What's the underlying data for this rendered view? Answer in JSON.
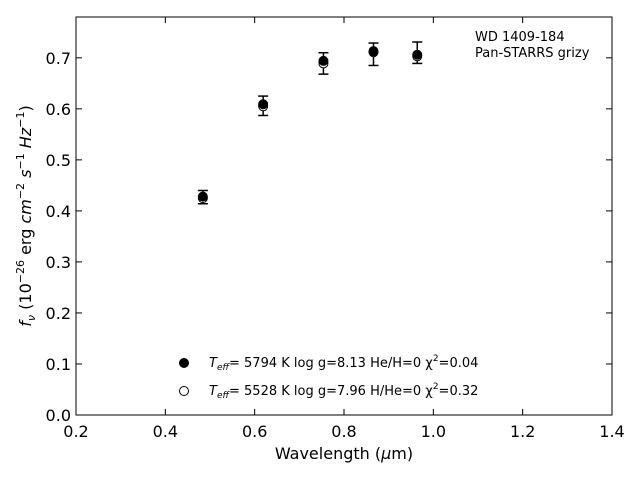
{
  "chart_data": {
    "type": "scatter",
    "title": "",
    "xlabel": "Wavelength (μm)",
    "ylabel": "f_ν (10^-26 erg cm^-2 s^-1 Hz^-1)",
    "xlim": [
      0.2,
      1.4
    ],
    "ylim": [
      0.0,
      0.78
    ],
    "xticks": [
      0.2,
      0.4,
      0.6,
      0.8,
      1.0,
      1.2,
      1.4
    ],
    "xtick_labels": [
      "0.2",
      "0.4",
      "0.6",
      "0.8",
      "1.0",
      "1.2",
      "1.4"
    ],
    "yticks": [
      0.0,
      0.1,
      0.2,
      0.3,
      0.4,
      0.5,
      0.6,
      0.7
    ],
    "ytick_labels": [
      "0.0",
      "0.1",
      "0.2",
      "0.3",
      "0.4",
      "0.5",
      "0.6",
      "0.7"
    ],
    "grid": false,
    "legend_position": "bottom-center",
    "annotation": {
      "line1": "WD 1409-184",
      "line2": "Pan-STARRS grizy"
    },
    "observed": {
      "x": [
        0.484,
        0.619,
        0.754,
        0.866,
        0.964
      ],
      "y": [
        0.427,
        0.606,
        0.689,
        0.707,
        0.71
      ],
      "yerr": [
        0.013,
        0.019,
        0.021,
        0.022,
        0.021
      ]
    },
    "series": [
      {
        "marker": "filled",
        "x": [
          0.484,
          0.619,
          0.754,
          0.866,
          0.964
        ],
        "y": [
          0.428,
          0.609,
          0.694,
          0.713,
          0.706
        ],
        "label_parts": {
          "teff_prefix": "T",
          "teff_sub": "eff",
          "rest": "=  5794 K  log g=8.13  He/H=0  χ",
          "sup": "2",
          "tail": "=0.04"
        }
      },
      {
        "marker": "open",
        "x": [
          0.484,
          0.619,
          0.754,
          0.866,
          0.964
        ],
        "y": [
          0.425,
          0.605,
          0.689,
          0.711,
          0.703
        ],
        "label_parts": {
          "teff_prefix": "T",
          "teff_sub": "eff",
          "rest": "=  5528 K  log g=7.96  H/He=0  χ",
          "sup": "2",
          "tail": "=0.32"
        }
      }
    ],
    "colors": {
      "marker": "#000000",
      "background": "#ffffff"
    }
  }
}
